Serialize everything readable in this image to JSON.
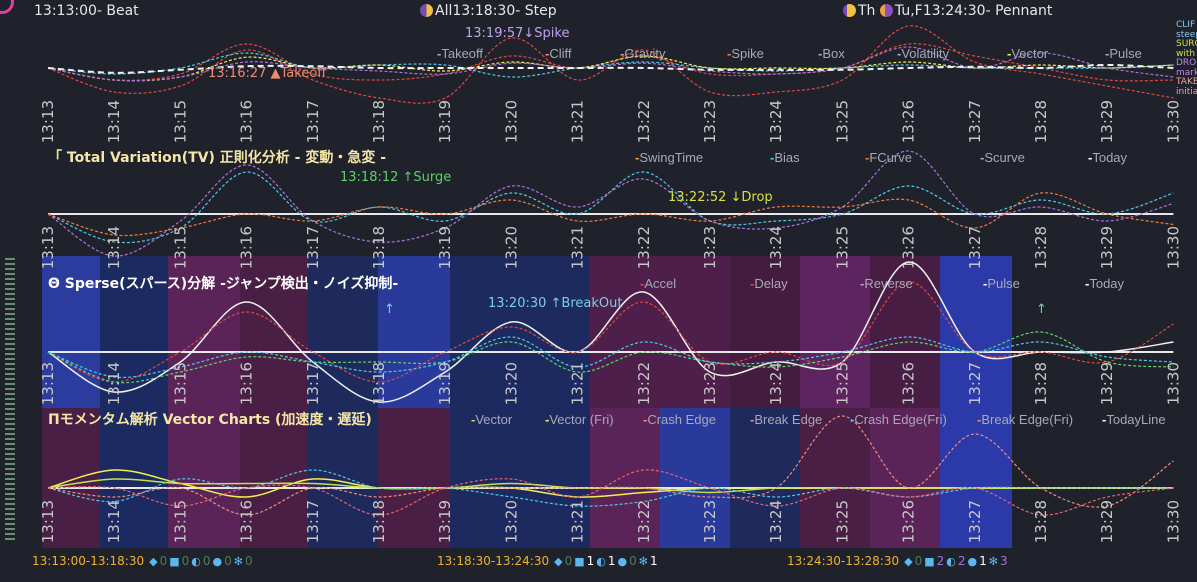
{
  "header": {
    "beat": "13:13:00- Beat",
    "step": "All13:18:30- Step",
    "th": "Th",
    "pennant": "Tu,F13:24:30- Pennant"
  },
  "colors": {
    "background": "#1f222b",
    "red": "#e0463f",
    "orange": "#f07a3a",
    "cyan": "#4fc8e8",
    "yellow": "#f0f050",
    "purple": "#b070e0",
    "white": "#f0f0f0",
    "green": "#5fd06a",
    "salmon": "#f08a7a"
  },
  "chart_data": [
    {
      "type": "line",
      "x": [
        "13:13",
        "13:14",
        "13:15",
        "13:16",
        "13:17",
        "13:18",
        "13:19",
        "13:20",
        "13:21",
        "13:22",
        "13:23",
        "13:24",
        "13:25",
        "13:26",
        "13:27",
        "13:28",
        "13:29",
        "13:30"
      ],
      "annotations": [
        "13:16:27 ▲Takeoff",
        "13:19:57↓Spike"
      ],
      "legend": [
        "Takeoff",
        "Cliff",
        "Gravity",
        "Spike",
        "Box",
        "Volatility",
        "Vector",
        "Pulse"
      ],
      "side_notes": [
        "CLIF",
        "steep",
        "SURG",
        "with",
        "DRO",
        "mark",
        "TAKE",
        "initia"
      ],
      "series": [
        {
          "color": "#e0463f",
          "values": [
            0,
            -4,
            -3,
            3,
            -2,
            -5,
            -5,
            5,
            -2,
            3,
            -4,
            -4,
            -2,
            7,
            1,
            -1,
            -3,
            -5
          ]
        },
        {
          "color": "#e0463f",
          "values": [
            0,
            -2,
            -1,
            4,
            -1,
            -2,
            -1,
            2,
            0,
            2,
            -1,
            -1,
            0,
            4,
            2,
            0,
            -2,
            -2
          ]
        },
        {
          "color": "#4fc8e8",
          "values": [
            0,
            -1,
            0,
            2.5,
            0,
            0.5,
            0.5,
            -1.5,
            0,
            1,
            0,
            -0.5,
            0,
            0.5,
            0,
            0,
            0,
            0.5
          ]
        },
        {
          "color": "#f0f050",
          "values": [
            0,
            -2,
            -1.5,
            1.8,
            0,
            0.5,
            -0.5,
            1,
            0,
            2,
            0,
            0,
            0,
            1,
            0,
            0.5,
            0,
            0.5
          ]
        },
        {
          "color": "#b070e0",
          "values": [
            0,
            -2,
            -1.5,
            1,
            0,
            -0.5,
            -1,
            0.8,
            0,
            0.8,
            -0.5,
            -1,
            0,
            3.5,
            0,
            2.5,
            0,
            -1.5
          ]
        },
        {
          "color": "#f0f0f0",
          "values": [
            0,
            -0.8,
            -0.3,
            0.3,
            0.3,
            0,
            0,
            0,
            0,
            0,
            -0.3,
            -0.3,
            -0.3,
            0,
            0.2,
            0,
            0.5,
            0
          ]
        }
      ]
    },
    {
      "type": "line",
      "title": "「 Total Variation(TV) 正則化分析 - 変動・急変 -",
      "x": [
        "13:13",
        "13:14",
        "13:15",
        "13:16",
        "13:17",
        "13:18",
        "13:19",
        "13:20",
        "13:21",
        "13:22",
        "13:23",
        "13:24",
        "13:25",
        "13:26",
        "13:27",
        "13:28",
        "13:29",
        "13:30"
      ],
      "annotations": [
        "13:18:12 ↑Surge",
        "13:22:52 ↓Drop"
      ],
      "legend": [
        "SwingTime",
        "Bias",
        "FCurve",
        "Scurve",
        "Today"
      ],
      "series": [
        {
          "color": "#4fc8e8",
          "values": [
            0,
            -4,
            -2,
            6,
            -1,
            1,
            -1,
            3,
            0,
            6,
            -1,
            -1,
            0,
            4,
            0,
            2,
            0,
            3
          ]
        },
        {
          "color": "#b070e0",
          "values": [
            0,
            -6,
            -1,
            7,
            -1,
            -4,
            -2,
            4,
            1,
            5,
            -1,
            -2,
            1,
            9,
            0,
            1,
            -1,
            1.5
          ]
        },
        {
          "color": "#f07a3a",
          "values": [
            0,
            -3,
            -2,
            0,
            -1,
            1,
            0,
            2,
            -1,
            0,
            -1,
            1,
            1,
            2,
            -2,
            3,
            0,
            -1.5
          ]
        }
      ]
    },
    {
      "type": "line",
      "title": "Θ Sperse(スパース)分解 -ジャンプ検出・ノイズ抑制-",
      "x": [
        "13:13",
        "13:14",
        "13:15",
        "13:16",
        "13:17",
        "13:18",
        "13:19",
        "13:20",
        "13:21",
        "13:22",
        "13:23",
        "13:24",
        "13:25",
        "13:26",
        "13:27",
        "13:28",
        "13:29",
        "13:30"
      ],
      "annotations": [
        "13:20:30 ↑BreakOut",
        "↑",
        "↑"
      ],
      "legend": [
        "Accel",
        "Delay",
        "Reverse",
        "Pulse",
        "Today"
      ],
      "series": [
        {
          "color": "#f0f0f0",
          "dashed": false,
          "values": [
            0,
            -4,
            -1,
            5,
            -1,
            -5,
            -2,
            3,
            0,
            6,
            -2,
            -1,
            -1,
            9,
            0,
            0,
            0,
            1
          ]
        },
        {
          "color": "#e0463f",
          "values": [
            0,
            -3,
            0,
            4,
            0,
            -3,
            0,
            2.5,
            0,
            5,
            -1,
            0,
            -1,
            7,
            0,
            0,
            -1,
            2.8
          ]
        },
        {
          "color": "#5fd06a",
          "values": [
            0,
            -3,
            -2,
            -0.5,
            -1,
            -1,
            -1,
            1,
            -2,
            0,
            -1,
            -1.5,
            -0.5,
            1,
            0,
            2,
            -1,
            -1.5
          ]
        },
        {
          "color": "#4fc8e8",
          "values": [
            0,
            -2.5,
            -1.5,
            0,
            -1,
            -2,
            -1,
            1.5,
            -1.5,
            1,
            -1,
            -1,
            0,
            1.5,
            0,
            1,
            -0.5,
            -1
          ]
        }
      ]
    },
    {
      "type": "line",
      "title": "Πモメンタム解析 Vector Charts (加速度・遅延)",
      "x": [
        "13:13",
        "13:14",
        "13:15",
        "13:16",
        "13:17",
        "13:18",
        "13:19",
        "13:20",
        "13:21",
        "13:22",
        "13:23",
        "13:24",
        "13:25",
        "13:26",
        "13:27",
        "13:28",
        "13:29",
        "13:30"
      ],
      "legend": [
        "Vector",
        "Vector (Fri)",
        "Crash Edge",
        "Break Edge",
        "Crash Edge(Fri)",
        "Break Edge(Fri)",
        "TodayLine"
      ],
      "series": [
        {
          "color": "#f0f050",
          "dashed": false,
          "values": [
            0,
            2,
            0.5,
            -1,
            1,
            0,
            0,
            0,
            -1,
            -0.5,
            0,
            0,
            0,
            0,
            0,
            0,
            0,
            0
          ]
        },
        {
          "color": "#c8e050",
          "dashed": false,
          "values": [
            0,
            1,
            0.5,
            0.5,
            0.5,
            0,
            0,
            0.5,
            0,
            0,
            -0.5,
            0,
            0,
            0,
            0,
            0,
            0,
            0
          ]
        },
        {
          "color": "#4fc8e8",
          "values": [
            0,
            -1.5,
            1,
            0,
            2,
            0,
            0,
            -1,
            -2,
            -1.5,
            0,
            -1,
            0,
            -1,
            0,
            0,
            0,
            0
          ]
        },
        {
          "color": "#f08a7a",
          "values": [
            0,
            -1,
            0,
            -3,
            0,
            -1,
            0,
            0,
            0,
            0,
            -1,
            0,
            8,
            0,
            6,
            0,
            -2,
            3
          ]
        },
        {
          "color": "#e86070",
          "values": [
            0,
            0,
            -2,
            0,
            0,
            -3,
            0,
            1,
            -1,
            2,
            0,
            -2,
            0,
            -1,
            0,
            -3,
            -1,
            0
          ]
        }
      ]
    }
  ],
  "footer": [
    {
      "range": "13:13:00-13:18:30",
      "counts": [
        "0",
        "0",
        "0",
        "0",
        "0"
      ]
    },
    {
      "range": "13:18:30-13:24:30",
      "counts": [
        "0",
        "1",
        "1",
        "0",
        "1"
      ]
    },
    {
      "range": "13:24:30-13:28:30",
      "counts": [
        "0",
        "2",
        "2",
        "1",
        "3"
      ]
    }
  ],
  "footer_icons": [
    "gem-icon",
    "cube-icon",
    "magnet-icon",
    "droplet-icon",
    "snowflake-icon"
  ]
}
